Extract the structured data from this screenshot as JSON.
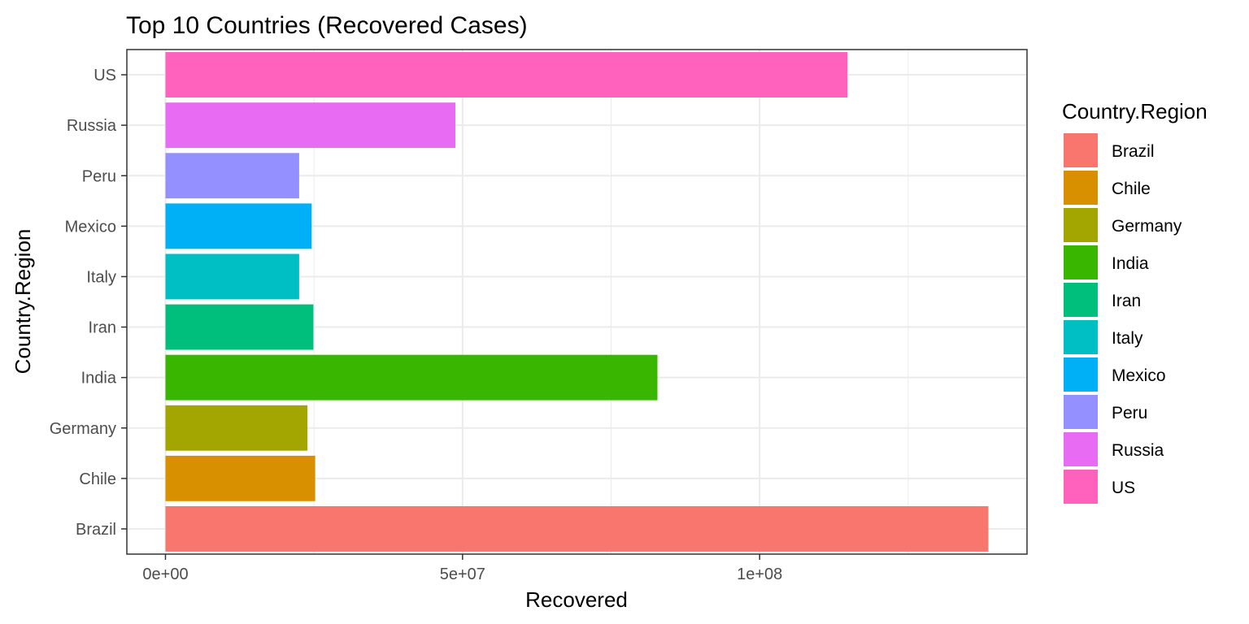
{
  "chart_data": {
    "type": "bar",
    "orientation": "horizontal",
    "title": "Top 10 Countries (Recovered Cases)",
    "xlabel": "Recovered",
    "ylabel": "Country.Region",
    "categories": [
      "Brazil",
      "Chile",
      "Germany",
      "India",
      "Iran",
      "Italy",
      "Mexico",
      "Peru",
      "Russia",
      "US"
    ],
    "values": [
      138500000,
      25200000,
      23900000,
      82800000,
      24900000,
      22500000,
      24600000,
      22500000,
      48800000,
      114800000
    ],
    "colors": [
      "#F8766D",
      "#D89000",
      "#A3A500",
      "#39B600",
      "#00BF7D",
      "#00BFC4",
      "#00B0F6",
      "#9590FF",
      "#E76BF3",
      "#FF62BC"
    ],
    "xticks": [
      0,
      50000000,
      100000000
    ],
    "xtick_labels": [
      "0e+00",
      "5e+07",
      "1e+08"
    ],
    "xlim": [
      -6500000,
      145000000
    ],
    "grid": true,
    "legend": {
      "title": "Country.Region",
      "position": "right",
      "items": [
        "Brazil",
        "Chile",
        "Germany",
        "India",
        "Iran",
        "Italy",
        "Mexico",
        "Peru",
        "Russia",
        "US"
      ]
    }
  }
}
